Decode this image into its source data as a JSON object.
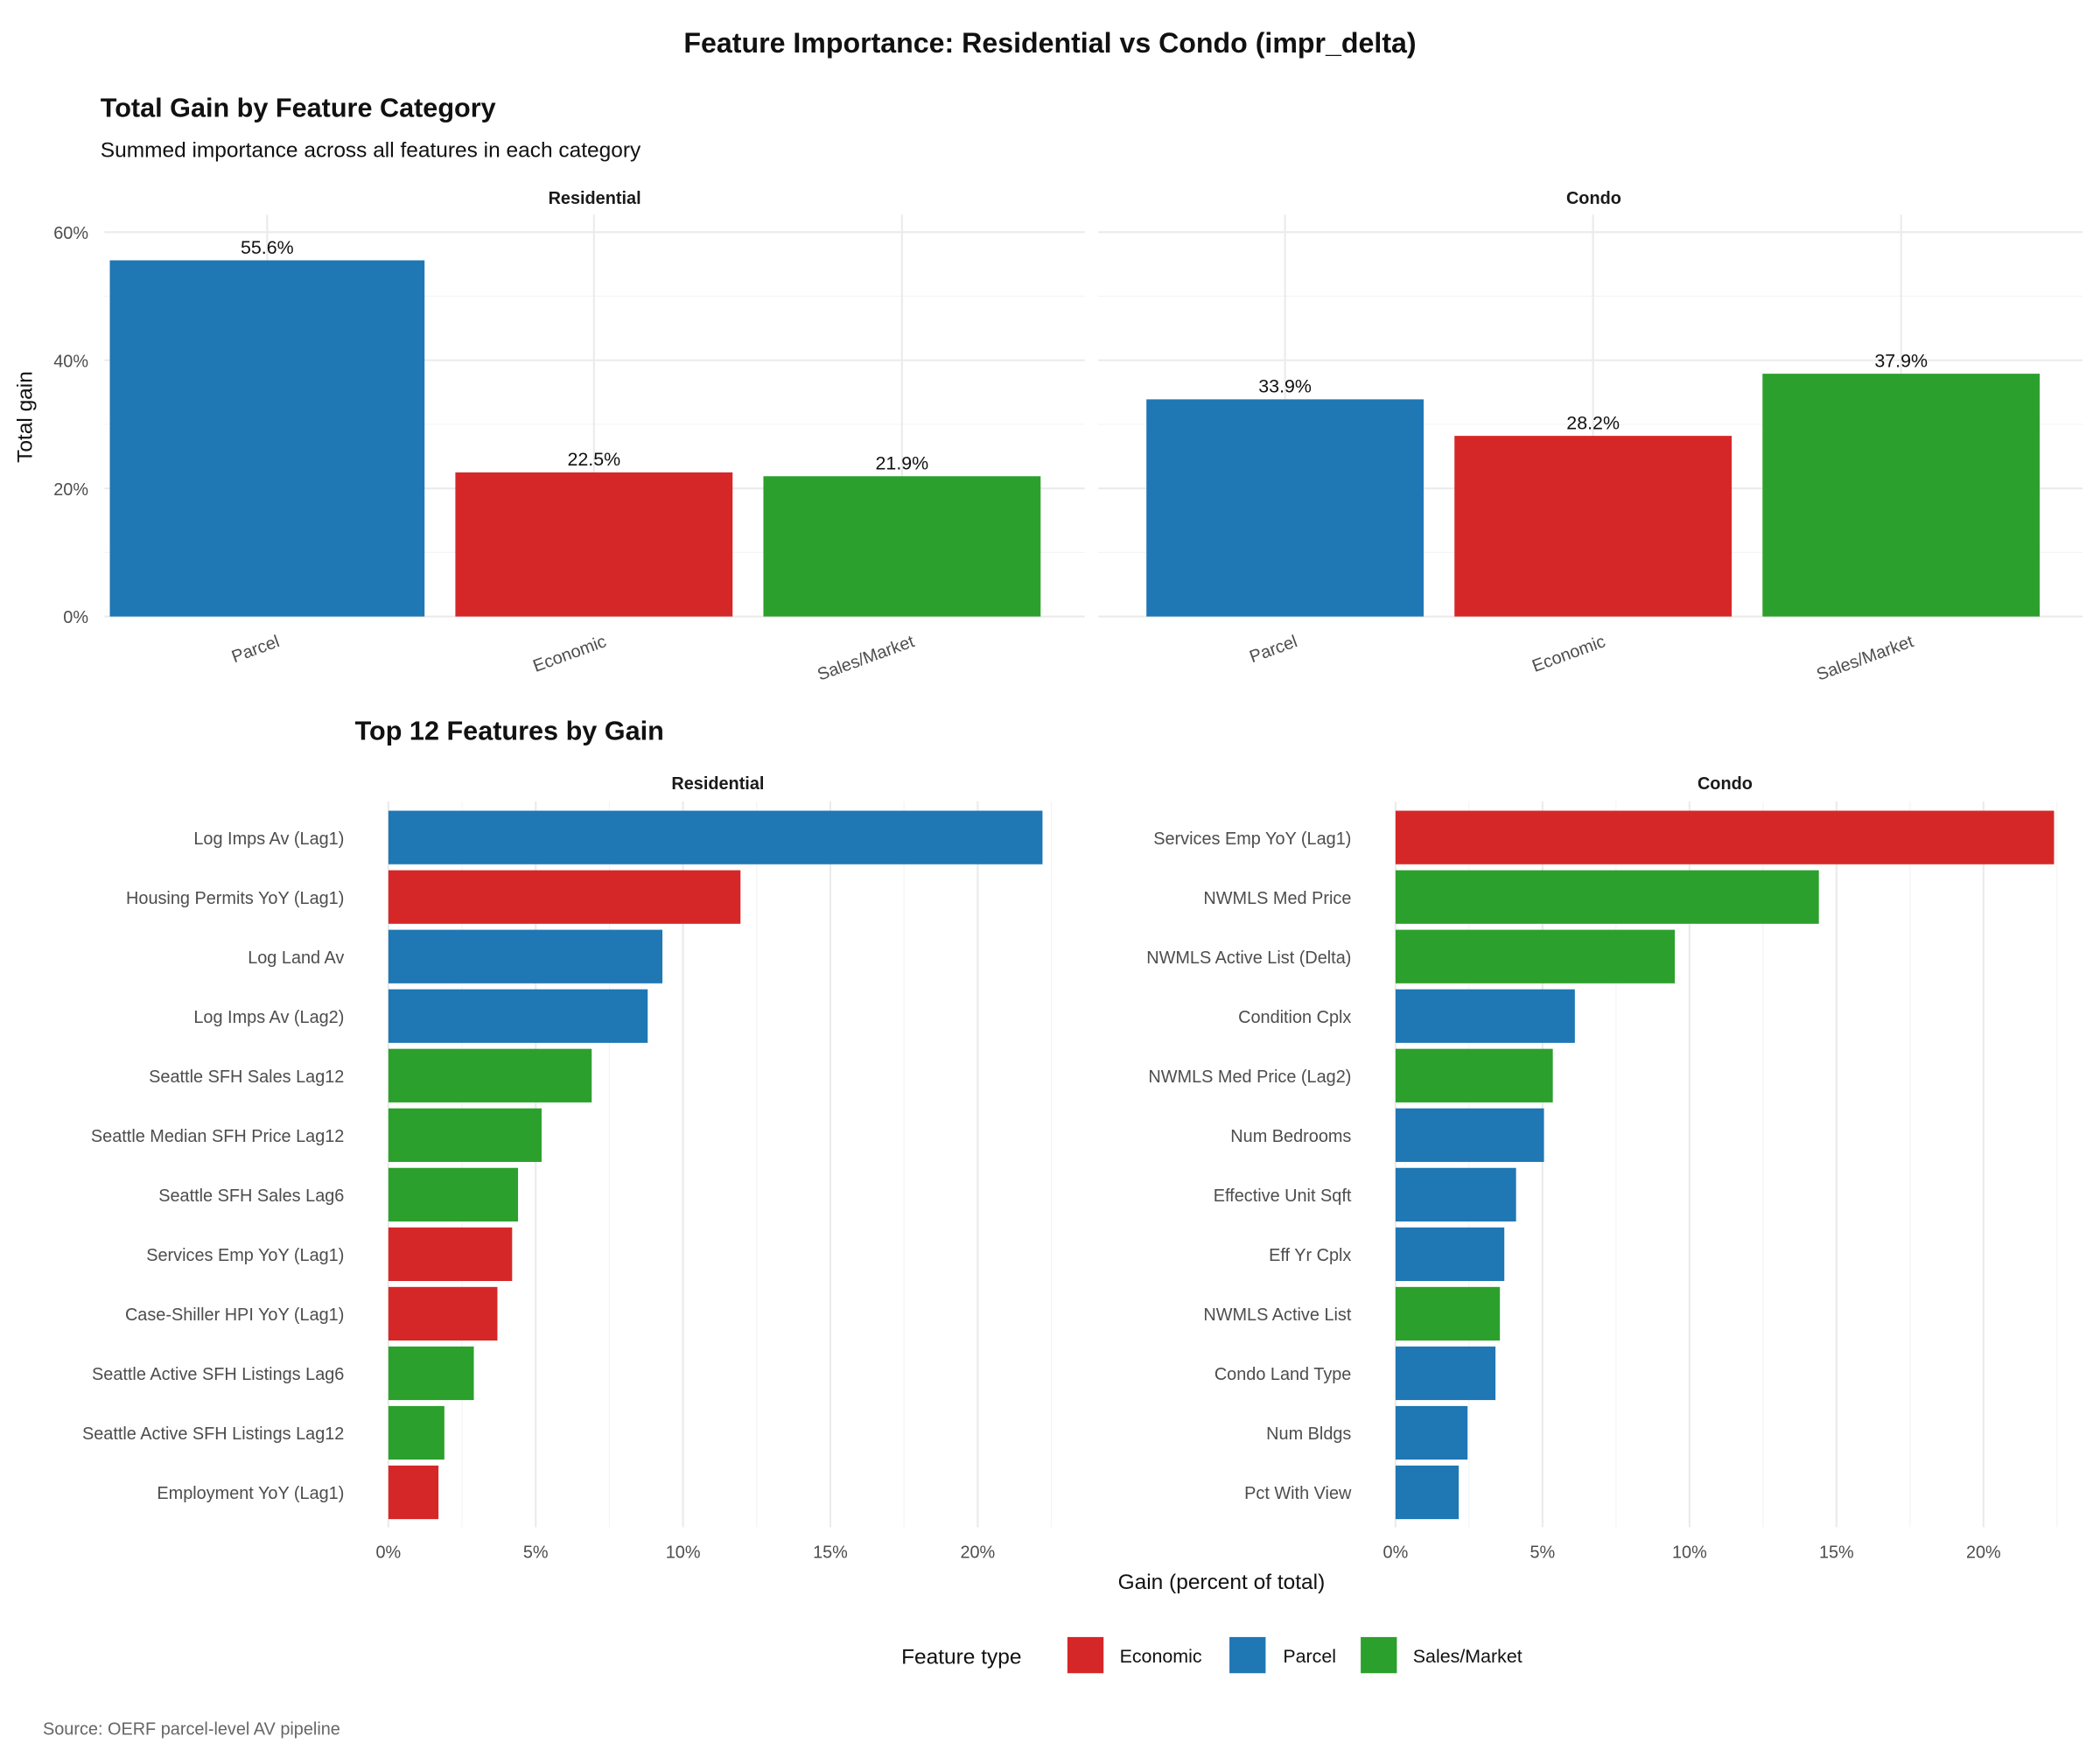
{
  "title": "Feature Importance: Residential vs Condo (impr_delta)",
  "caption": "Source: OERF parcel-level AV pipeline",
  "colors": {
    "Economic": "#d62728",
    "Parcel": "#1f77b4",
    "Sales/Market": "#2ca02c"
  },
  "legend": {
    "title": "Feature type",
    "items": [
      "Economic",
      "Parcel",
      "Sales/Market"
    ],
    "position": "bottom"
  },
  "chart_data": [
    {
      "type": "bar",
      "title": "Total Gain by Feature Category",
      "subtitle": "Summed importance across all features in each category",
      "ylabel": "Total gain",
      "ylim": [
        0,
        60
      ],
      "yticks": [
        "0%",
        "20%",
        "40%",
        "60%"
      ],
      "categories": [
        "Parcel",
        "Economic",
        "Sales/Market"
      ],
      "grid": true,
      "panels": [
        {
          "name": "Residential",
          "values": [
            55.6,
            22.5,
            21.9
          ],
          "labels": [
            "55.6%",
            "22.5%",
            "21.9%"
          ]
        },
        {
          "name": "Condo",
          "values": [
            33.9,
            28.2,
            37.9
          ],
          "labels": [
            "33.9%",
            "28.2%",
            "37.9%"
          ]
        }
      ]
    },
    {
      "type": "bar",
      "orientation": "horizontal",
      "title": "Top 12 Features by Gain",
      "xlabel": "Gain (percent of total)",
      "xlim": [
        0,
        22.5
      ],
      "xticks": [
        "0%",
        "5%",
        "10%",
        "15%",
        "20%"
      ],
      "grid": true,
      "panels": [
        {
          "name": "Residential",
          "features": [
            {
              "label": "Log Imps Av (Lag1)",
              "value": 22.2,
              "type": "Parcel"
            },
            {
              "label": "Housing Permits YoY (Lag1)",
              "value": 11.95,
              "type": "Economic"
            },
            {
              "label": "Log Land Av",
              "value": 9.3,
              "type": "Parcel"
            },
            {
              "label": "Log Imps Av (Lag2)",
              "value": 8.8,
              "type": "Parcel"
            },
            {
              "label": "Seattle SFH Sales Lag12",
              "value": 6.9,
              "type": "Sales/Market"
            },
            {
              "label": "Seattle Median SFH Price Lag12",
              "value": 5.2,
              "type": "Sales/Market"
            },
            {
              "label": "Seattle SFH Sales Lag6",
              "value": 4.4,
              "type": "Sales/Market"
            },
            {
              "label": "Services Emp YoY (Lag1)",
              "value": 4.2,
              "type": "Economic"
            },
            {
              "label": "Case-Shiller HPI YoY (Lag1)",
              "value": 3.7,
              "type": "Economic"
            },
            {
              "label": "Seattle Active SFH Listings Lag6",
              "value": 2.9,
              "type": "Sales/Market"
            },
            {
              "label": "Seattle Active SFH Listings Lag12",
              "value": 1.9,
              "type": "Sales/Market"
            },
            {
              "label": "Employment YoY (Lag1)",
              "value": 1.7,
              "type": "Economic"
            }
          ]
        },
        {
          "name": "Condo",
          "features": [
            {
              "label": "Services Emp YoY (Lag1)",
              "value": 22.4,
              "type": "Economic"
            },
            {
              "label": "NWMLS Med Price",
              "value": 14.4,
              "type": "Sales/Market"
            },
            {
              "label": "NWMLS Active List (Delta)",
              "value": 9.5,
              "type": "Sales/Market"
            },
            {
              "label": "Condition Cplx",
              "value": 6.1,
              "type": "Parcel"
            },
            {
              "label": "NWMLS Med Price (Lag2)",
              "value": 5.35,
              "type": "Sales/Market"
            },
            {
              "label": "Num Bedrooms",
              "value": 5.05,
              "type": "Parcel"
            },
            {
              "label": "Effective Unit Sqft",
              "value": 4.1,
              "type": "Parcel"
            },
            {
              "label": "Eff Yr Cplx",
              "value": 3.7,
              "type": "Parcel"
            },
            {
              "label": "NWMLS Active List",
              "value": 3.55,
              "type": "Sales/Market"
            },
            {
              "label": "Condo Land Type",
              "value": 3.4,
              "type": "Parcel"
            },
            {
              "label": "Num Bldgs",
              "value": 2.45,
              "type": "Parcel"
            },
            {
              "label": "Pct With View",
              "value": 2.15,
              "type": "Parcel"
            }
          ]
        }
      ]
    }
  ]
}
